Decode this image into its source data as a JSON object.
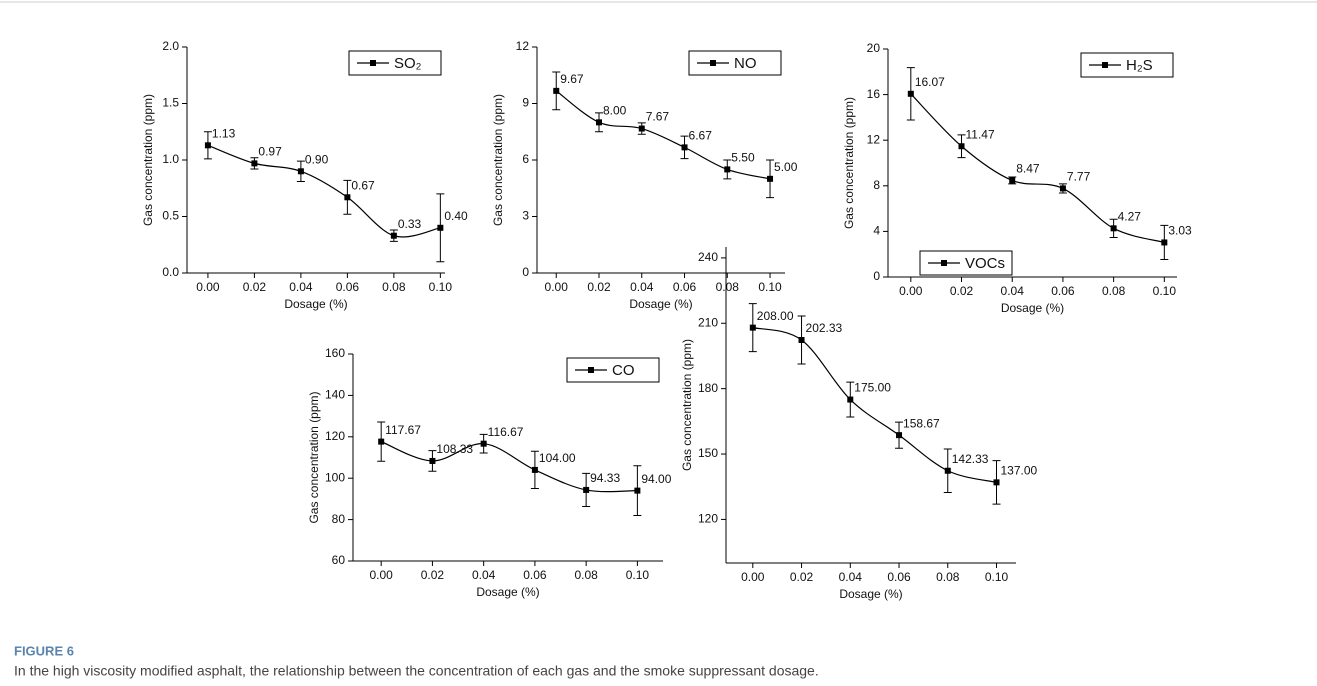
{
  "chart_data": [
    {
      "type": "line",
      "xlabel": "Dosage (%)",
      "ylabel": "Gas concentration (ppm)",
      "legend": "top-right",
      "x": [
        0,
        0.02,
        0.04,
        0.06,
        0.08,
        0.1
      ],
      "xlim": [
        -0.009,
        0.102
      ],
      "xticks": [
        {
          "value": 0,
          "label": "0.00"
        },
        {
          "value": 0.02,
          "label": "0.02"
        },
        {
          "value": 0.04,
          "label": "0.04"
        },
        {
          "value": 0.06,
          "label": "0.06"
        },
        {
          "value": 0.08,
          "label": "0.08"
        },
        {
          "value": 0.1,
          "label": "0.10"
        }
      ],
      "ylim": [
        0,
        2
      ],
      "yticks": [
        {
          "value": 0,
          "label": "0.0"
        },
        {
          "value": 0.5,
          "label": "0.5"
        },
        {
          "value": 1,
          "label": "1.0"
        },
        1.5,
        {
          "value": 2,
          "label": "2.0"
        }
      ],
      "series": [
        {
          "name": "SO₂",
          "color": "#000000",
          "values": [
            1.13,
            0.97,
            0.9,
            0.67,
            0.33,
            0.4
          ],
          "value_labels": [
            "1.13",
            "0.97",
            "0.90",
            "0.67",
            "0.33",
            "0.40"
          ],
          "errors": [
            0.12,
            0.05,
            0.09,
            0.15,
            0.05,
            0.3
          ]
        }
      ]
    },
    {
      "type": "line",
      "xlabel": "Dosage (%)",
      "ylabel": "Gas concentration (ppm)",
      "legend": "top-right",
      "x": [
        0,
        0.02,
        0.04,
        0.06,
        0.08,
        0.1
      ],
      "xlim": [
        -0.009,
        0.107
      ],
      "xticks": [
        {
          "value": 0,
          "label": "0.00"
        },
        {
          "value": 0.02,
          "label": "0.02"
        },
        {
          "value": 0.04,
          "label": "0.04"
        },
        {
          "value": 0.06,
          "label": "0.06"
        },
        {
          "value": 0.08,
          "label": "0.08"
        },
        {
          "value": 0.1,
          "label": "0.10"
        }
      ],
      "ylim": [
        0,
        12
      ],
      "yticks": [
        0,
        3,
        6,
        9,
        12
      ],
      "series": [
        {
          "name": "NO",
          "color": "#000000",
          "values": [
            9.67,
            8.0,
            7.67,
            6.67,
            5.5,
            5.0
          ],
          "value_labels": [
            "9.67",
            "8.00",
            "7.67",
            "6.67",
            "5.50",
            "5.00"
          ],
          "errors": [
            1.0,
            0.5,
            0.3,
            0.6,
            0.5,
            1.0
          ]
        }
      ]
    },
    {
      "type": "line",
      "xlabel": "Dosage (%)",
      "ylabel": "Gas concentration (ppm)",
      "legend": "top-right",
      "x": [
        0,
        0.02,
        0.04,
        0.06,
        0.08,
        0.1
      ],
      "xlim": [
        -0.009,
        0.105
      ],
      "xticks": [
        {
          "value": 0,
          "label": "0.00"
        },
        {
          "value": 0.02,
          "label": "0.02"
        },
        {
          "value": 0.04,
          "label": "0.04"
        },
        {
          "value": 0.06,
          "label": "0.06"
        },
        {
          "value": 0.08,
          "label": "0.08"
        },
        {
          "value": 0.1,
          "label": "0.10"
        }
      ],
      "ylim": [
        0,
        20
      ],
      "yticks": [
        0,
        4,
        8,
        12,
        16,
        20
      ],
      "series": [
        {
          "name": "H₂S",
          "color": "#000000",
          "values": [
            16.07,
            11.47,
            8.47,
            7.77,
            4.27,
            3.03
          ],
          "value_labels": [
            "16.07",
            "11.47",
            "8.47",
            "7.77",
            "4.27",
            "3.03"
          ],
          "errors": [
            2.3,
            1.0,
            0.3,
            0.4,
            0.8,
            1.5
          ]
        }
      ]
    },
    {
      "type": "line",
      "xlabel": "Dosage (%)",
      "ylabel": "Gas concentration (ppm)",
      "legend": "top-right",
      "x": [
        0,
        0.02,
        0.04,
        0.06,
        0.08,
        0.1
      ],
      "xlim": [
        -0.011,
        0.11
      ],
      "xticks": [
        {
          "value": 0,
          "label": "0.00"
        },
        {
          "value": 0.02,
          "label": "0.02"
        },
        {
          "value": 0.04,
          "label": "0.04"
        },
        {
          "value": 0.06,
          "label": "0.06"
        },
        {
          "value": 0.08,
          "label": "0.08"
        },
        {
          "value": 0.1,
          "label": "0.10"
        }
      ],
      "ylim": [
        60,
        160
      ],
      "yticks": [
        60,
        80,
        100,
        120,
        140,
        160
      ],
      "series": [
        {
          "name": "CO",
          "color": "#000000",
          "values": [
            117.67,
            108.33,
            116.67,
            104.0,
            94.33,
            94.0
          ],
          "value_labels": [
            "117.67",
            "108.33",
            "116.67",
            "104.00",
            "94.33",
            "94.00"
          ],
          "errors": [
            9.5,
            5,
            4.5,
            9,
            8,
            12
          ]
        }
      ]
    },
    {
      "type": "line",
      "xlabel": "Dosage (%)",
      "ylabel": "Gas concentration (ppm)",
      "legend": "top-right",
      "x": [
        0,
        0.02,
        0.04,
        0.06,
        0.08,
        0.1
      ],
      "xlim": [
        -0.011,
        0.108
      ],
      "xticks": [
        {
          "value": 0,
          "label": "0.00"
        },
        {
          "value": 0.02,
          "label": "0.02"
        },
        {
          "value": 0.04,
          "label": "0.04"
        },
        {
          "value": 0.06,
          "label": "0.06"
        },
        {
          "value": 0.08,
          "label": "0.08"
        },
        {
          "value": 0.1,
          "label": "0.10"
        }
      ],
      "ylim": [
        100,
        245
      ],
      "yticks": [
        120,
        150,
        180,
        210,
        240
      ],
      "series": [
        {
          "name": "VOCs",
          "color": "#000000",
          "values": [
            208.0,
            202.33,
            175.0,
            158.67,
            142.33,
            137.0
          ],
          "value_labels": [
            "208.00",
            "202.33",
            "175.00",
            "158.67",
            "142.33",
            "137.00"
          ],
          "errors": [
            11,
            11,
            8,
            6,
            10,
            10
          ]
        }
      ]
    }
  ],
  "figure": {
    "label": "FIGURE 6",
    "caption": "In the high viscosity modified asphalt, the relationship between the concentration of each gas and the smoke suppressant dosage."
  }
}
